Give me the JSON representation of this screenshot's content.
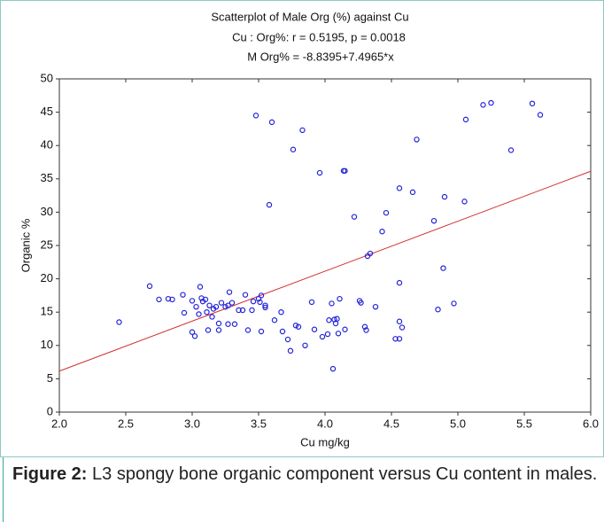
{
  "chart_data": {
    "type": "scatter",
    "title": "Scatterplot of Male Org (%) against Cu",
    "subtitle": "Cu : Org%: r = 0.5195, p = 0.0018",
    "equation": "M Org% = -8.8395+7.4965*x",
    "x_label": "Cu mg/kg",
    "y_label": "Organic %",
    "color": "#2323d8",
    "x": [
      2.45,
      2.68,
      2.75,
      2.82,
      2.85,
      2.93,
      2.94,
      3.0,
      3.0,
      3.02,
      3.03,
      3.05,
      3.06,
      3.07,
      3.08,
      3.1,
      3.11,
      3.12,
      3.13,
      3.15,
      3.16,
      3.18,
      3.2,
      3.2,
      3.22,
      3.25,
      3.27,
      3.27,
      3.28,
      3.3,
      3.32,
      3.35,
      3.38,
      3.4,
      3.42,
      3.45,
      3.46,
      3.48,
      3.5,
      3.51,
      3.52,
      3.52,
      3.55,
      3.55,
      3.58,
      3.6,
      3.62,
      3.67,
      3.68,
      3.72,
      3.74,
      3.76,
      3.78,
      3.8,
      3.83,
      3.85,
      3.9,
      3.92,
      3.96,
      3.98,
      4.02,
      4.03,
      4.05,
      4.06,
      4.07,
      4.08,
      4.09,
      4.1,
      4.11,
      4.14,
      4.15,
      4.15,
      4.22,
      4.26,
      4.27,
      4.3,
      4.31,
      4.32,
      4.34,
      4.38,
      4.43,
      4.46,
      4.53,
      4.56,
      4.56,
      4.56,
      4.56,
      4.58,
      4.66,
      4.69,
      4.82,
      4.85,
      4.89,
      4.9,
      4.97,
      5.05,
      5.06,
      5.19,
      5.25,
      5.4,
      5.56,
      5.62
    ],
    "values": [
      13.5,
      18.9,
      16.9,
      17.0,
      16.9,
      17.6,
      14.9,
      12.0,
      16.7,
      11.4,
      15.8,
      14.7,
      18.8,
      17.1,
      16.6,
      16.9,
      15.0,
      12.3,
      16.0,
      14.3,
      15.5,
      15.8,
      13.3,
      12.3,
      16.4,
      15.8,
      16.0,
      13.2,
      18.0,
      16.4,
      13.2,
      15.3,
      15.3,
      17.6,
      12.3,
      15.3,
      16.6,
      44.5,
      17.0,
      16.5,
      17.5,
      12.1,
      16.0,
      15.7,
      31.1,
      43.5,
      13.8,
      15.0,
      12.1,
      10.9,
      9.2,
      39.4,
      13.0,
      12.8,
      42.3,
      10.0,
      16.5,
      12.4,
      35.9,
      11.3,
      11.7,
      13.8,
      16.3,
      6.5,
      13.9,
      13.3,
      14.0,
      11.8,
      17.0,
      36.2,
      36.2,
      12.4,
      29.3,
      16.7,
      16.4,
      12.8,
      12.3,
      23.4,
      23.8,
      15.8,
      27.1,
      29.9,
      11.0,
      11.0,
      13.6,
      19.4,
      33.6,
      12.7,
      33.0,
      40.9,
      28.7,
      15.4,
      21.6,
      32.3,
      16.3,
      31.6,
      43.9,
      46.1,
      46.4,
      39.3,
      46.3,
      44.6
    ],
    "fit_line": {
      "x": [
        2.0,
        6.0
      ],
      "y": [
        6.15,
        36.14
      ],
      "color": "#d03030"
    },
    "xlim": [
      2.0,
      6.0
    ],
    "xticks": [
      {
        "value": 2.0,
        "label": "2.0"
      },
      2.5,
      {
        "value": 3.0,
        "label": "3.0"
      },
      3.5,
      {
        "value": 4.0,
        "label": "4.0"
      },
      4.5,
      {
        "value": 5.0,
        "label": "5.0"
      },
      5.5,
      {
        "value": 6.0,
        "label": "6.0"
      }
    ],
    "ylim": [
      0,
      50
    ],
    "yticks": [
      0,
      5,
      10,
      15,
      20,
      25,
      30,
      35,
      40,
      45,
      50
    ],
    "grid": false
  },
  "caption": {
    "label": "Figure 2:",
    "text": "L3 spongy bone organic component versus Cu content in males."
  }
}
